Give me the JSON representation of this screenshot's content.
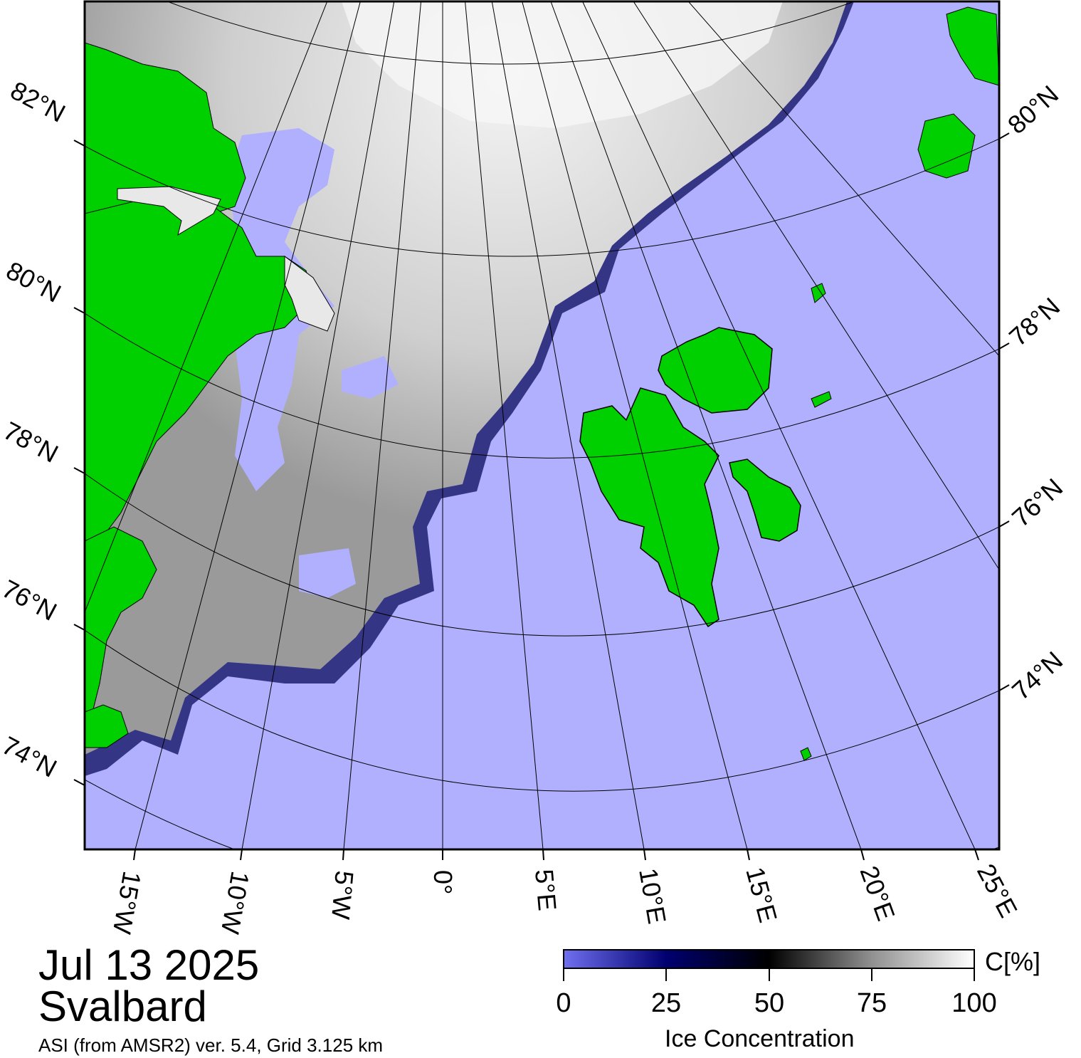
{
  "title": {
    "date": "Jul 13 2025",
    "region": "Svalbard",
    "credit": "ASI (from AMSR2) ver. 5.4,  Grid 3.125 km"
  },
  "colors": {
    "water": "#b0b0ff",
    "land": "#00d000",
    "low_ice": "#6a6ae8",
    "mid_ice": "#000050",
    "high_ice": "#ffffff"
  },
  "lat_labels_left": [
    "82°N",
    "80°N",
    "78°N",
    "76°N",
    "74°N"
  ],
  "lat_labels_right": [
    "80°N",
    "78°N",
    "76°N",
    "74°N"
  ],
  "lon_labels": [
    "15°W",
    "10°W",
    "5°W",
    "0°",
    "5°E",
    "10°E",
    "15°E",
    "20°E",
    "25°E"
  ],
  "colorbar": {
    "unit": "C[%]",
    "title": "Ice Concentration",
    "ticks": [
      "0",
      "25",
      "50",
      "75",
      "100"
    ]
  }
}
